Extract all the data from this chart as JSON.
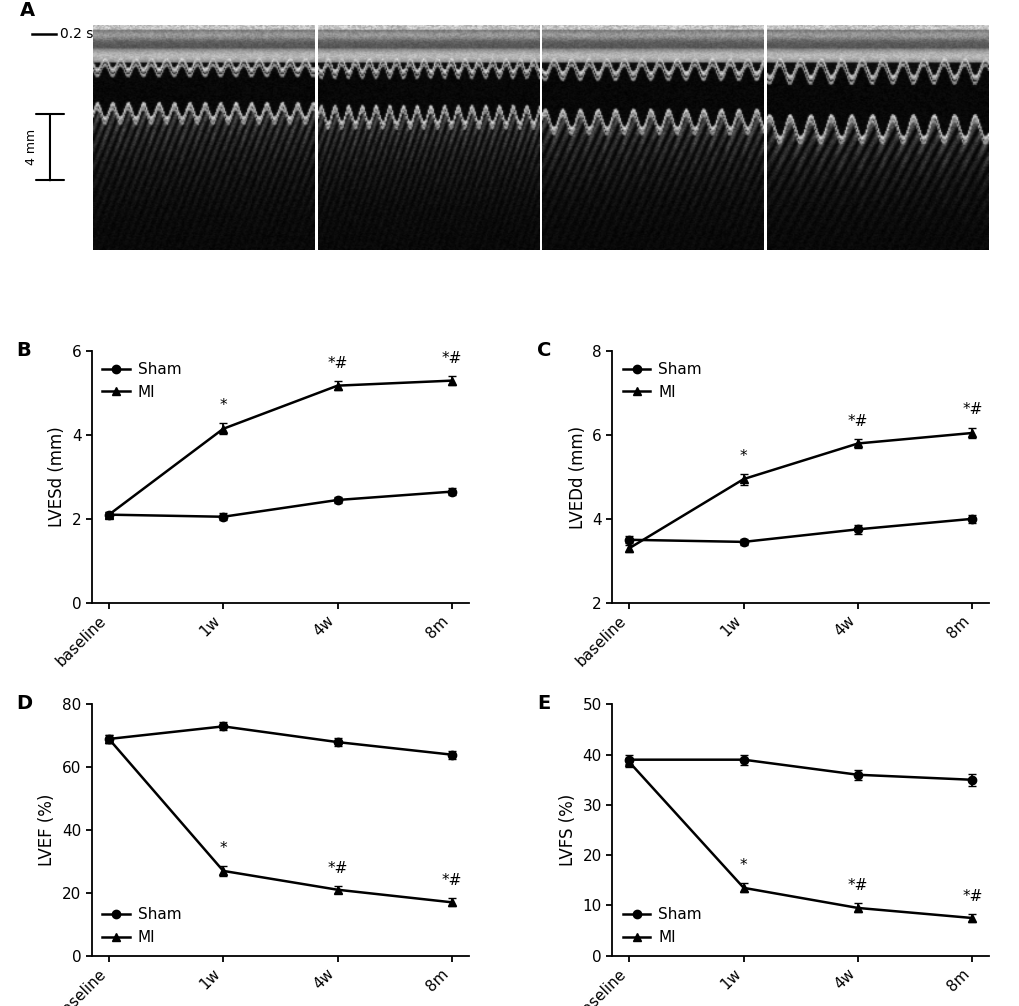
{
  "timepoints": [
    "baseline",
    "1w",
    "4w",
    "8m"
  ],
  "B": {
    "ylabel": "LVESd (mm)",
    "ylim": [
      0,
      6
    ],
    "yticks": [
      0,
      2,
      4,
      6
    ],
    "sham_mean": [
      2.1,
      2.05,
      2.45,
      2.65
    ],
    "sham_err": [
      0.07,
      0.08,
      0.08,
      0.09
    ],
    "mi_mean": [
      2.1,
      4.15,
      5.18,
      5.3
    ],
    "mi_err": [
      0.07,
      0.13,
      0.11,
      0.1
    ],
    "sig_mi": [
      "",
      "*",
      "*#",
      "*#"
    ],
    "legend_loc": "upper left"
  },
  "C": {
    "ylabel": "LVEDd (mm)",
    "ylim": [
      2,
      8
    ],
    "yticks": [
      2,
      4,
      6,
      8
    ],
    "sham_mean": [
      3.5,
      3.45,
      3.75,
      4.0
    ],
    "sham_err": [
      0.08,
      0.08,
      0.1,
      0.1
    ],
    "mi_mean": [
      3.3,
      4.95,
      5.8,
      6.05
    ],
    "mi_err": [
      0.08,
      0.13,
      0.11,
      0.13
    ],
    "sig_mi": [
      "",
      "*",
      "*#",
      "*#"
    ],
    "legend_loc": "upper left"
  },
  "D": {
    "ylabel": "LVEF (%)",
    "ylim": [
      0,
      80
    ],
    "yticks": [
      0,
      20,
      40,
      60,
      80
    ],
    "sham_mean": [
      69,
      73,
      68,
      64
    ],
    "sham_err": [
      1.2,
      1.3,
      1.2,
      1.3
    ],
    "mi_mean": [
      69,
      27,
      21,
      17
    ],
    "mi_err": [
      1.2,
      1.6,
      1.1,
      1.3
    ],
    "sig_mi": [
      "",
      "*",
      "*#",
      "*#"
    ],
    "legend_loc": "lower left"
  },
  "E": {
    "ylabel": "LVFS (%)",
    "ylim": [
      0,
      50
    ],
    "yticks": [
      0,
      10,
      20,
      30,
      40,
      50
    ],
    "sham_mean": [
      39,
      39.0,
      36,
      35
    ],
    "sham_err": [
      0.9,
      1.0,
      1.0,
      1.2
    ],
    "mi_mean": [
      38.5,
      13.5,
      9.5,
      7.5
    ],
    "mi_err": [
      0.9,
      0.9,
      0.9,
      0.8
    ],
    "sig_mi": [
      "",
      "*",
      "*#",
      "*#"
    ],
    "legend_loc": "lower left"
  },
  "line_color": "#000000",
  "marker_sham": "o",
  "marker_mi": "^",
  "markersize": 6,
  "linewidth": 1.8,
  "capsize": 3,
  "elinewidth": 1.3,
  "label_fontsize": 12,
  "tick_fontsize": 11,
  "panel_label_fontsize": 14,
  "sig_fontsize": 11
}
